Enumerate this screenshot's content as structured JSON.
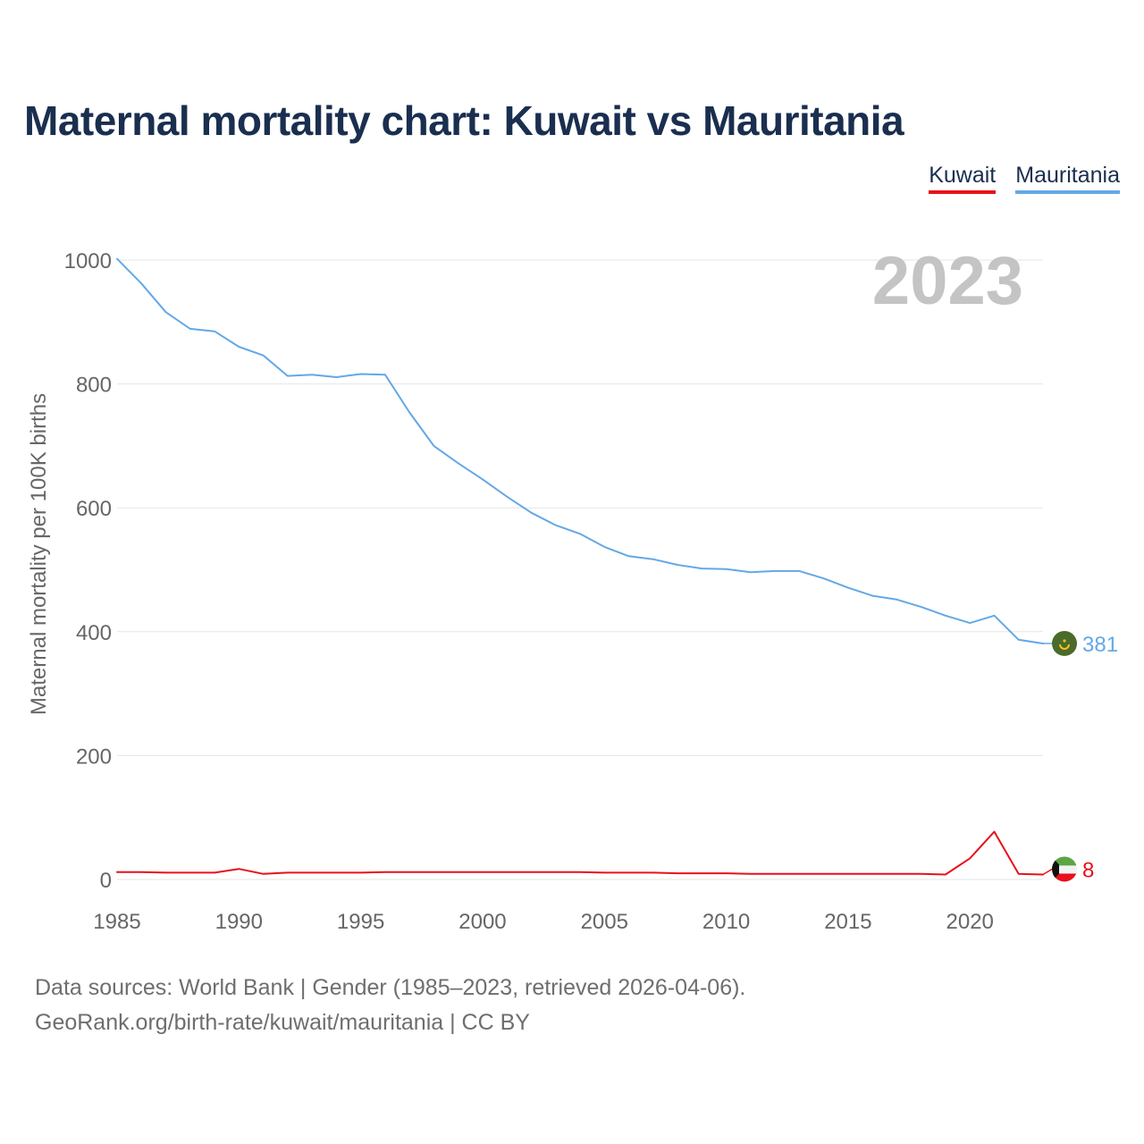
{
  "title": "Maternal mortality chart: Kuwait vs Mauritania",
  "legend": {
    "kuwait": "Kuwait",
    "mauritania": "Mauritania"
  },
  "year_label": "2023",
  "footer": {
    "line1": "Data sources: World Bank | Gender (1985–2023, retrieved 2026-04-06).",
    "line2": "GeoRank.org/birth-rate/kuwait/mauritania | CC BY"
  },
  "colors": {
    "kuwait": "#e8101b",
    "mauritania": "#64a8e6",
    "title": "#1a2f4f",
    "grid": "#e6e6e6",
    "axis_text": "#666666",
    "year_label": "#c4c4c4"
  },
  "icons": {
    "kuwait": "kuwait-flag-icon",
    "mauritania": "mauritania-flag-icon"
  },
  "chart_data": {
    "type": "line",
    "title": "Maternal mortality chart: Kuwait vs Mauritania",
    "xlabel": "",
    "ylabel": "Maternal mortality per 100K births",
    "xlim": [
      1985,
      2023
    ],
    "ylim": [
      0,
      1000
    ],
    "grid": true,
    "legend_position": "top-right",
    "x_ticks": [
      1985,
      1990,
      1995,
      2000,
      2005,
      2010,
      2015,
      2020
    ],
    "y_ticks": [
      0,
      200,
      400,
      600,
      800,
      1000
    ],
    "x": [
      1985,
      1986,
      1987,
      1988,
      1989,
      1990,
      1991,
      1992,
      1993,
      1994,
      1995,
      1996,
      1997,
      1998,
      1999,
      2000,
      2001,
      2002,
      2003,
      2004,
      2005,
      2006,
      2007,
      2008,
      2009,
      2010,
      2011,
      2012,
      2013,
      2014,
      2015,
      2016,
      2017,
      2018,
      2019,
      2020,
      2021,
      2022,
      2023
    ],
    "series": [
      {
        "name": "Mauritania",
        "color": "#64a8e6",
        "values": [
          1002,
          962,
          916,
          889,
          885,
          860,
          846,
          813,
          815,
          811,
          816,
          815,
          754,
          700,
          672,
          646,
          618,
          592,
          572,
          558,
          537,
          522,
          517,
          508,
          502,
          501,
          496,
          498,
          498,
          486,
          471,
          458,
          452,
          440,
          426,
          414,
          426,
          387,
          381
        ],
        "end_label": "381"
      },
      {
        "name": "Kuwait",
        "color": "#e8101b",
        "values": [
          12,
          12,
          11,
          11,
          11,
          17,
          9,
          11,
          11,
          11,
          11,
          12,
          12,
          12,
          12,
          12,
          12,
          12,
          12,
          12,
          11,
          11,
          11,
          10,
          10,
          10,
          9,
          9,
          9,
          9,
          9,
          9,
          9,
          9,
          8,
          34,
          77,
          9,
          8
        ],
        "end_label": "8"
      }
    ]
  }
}
